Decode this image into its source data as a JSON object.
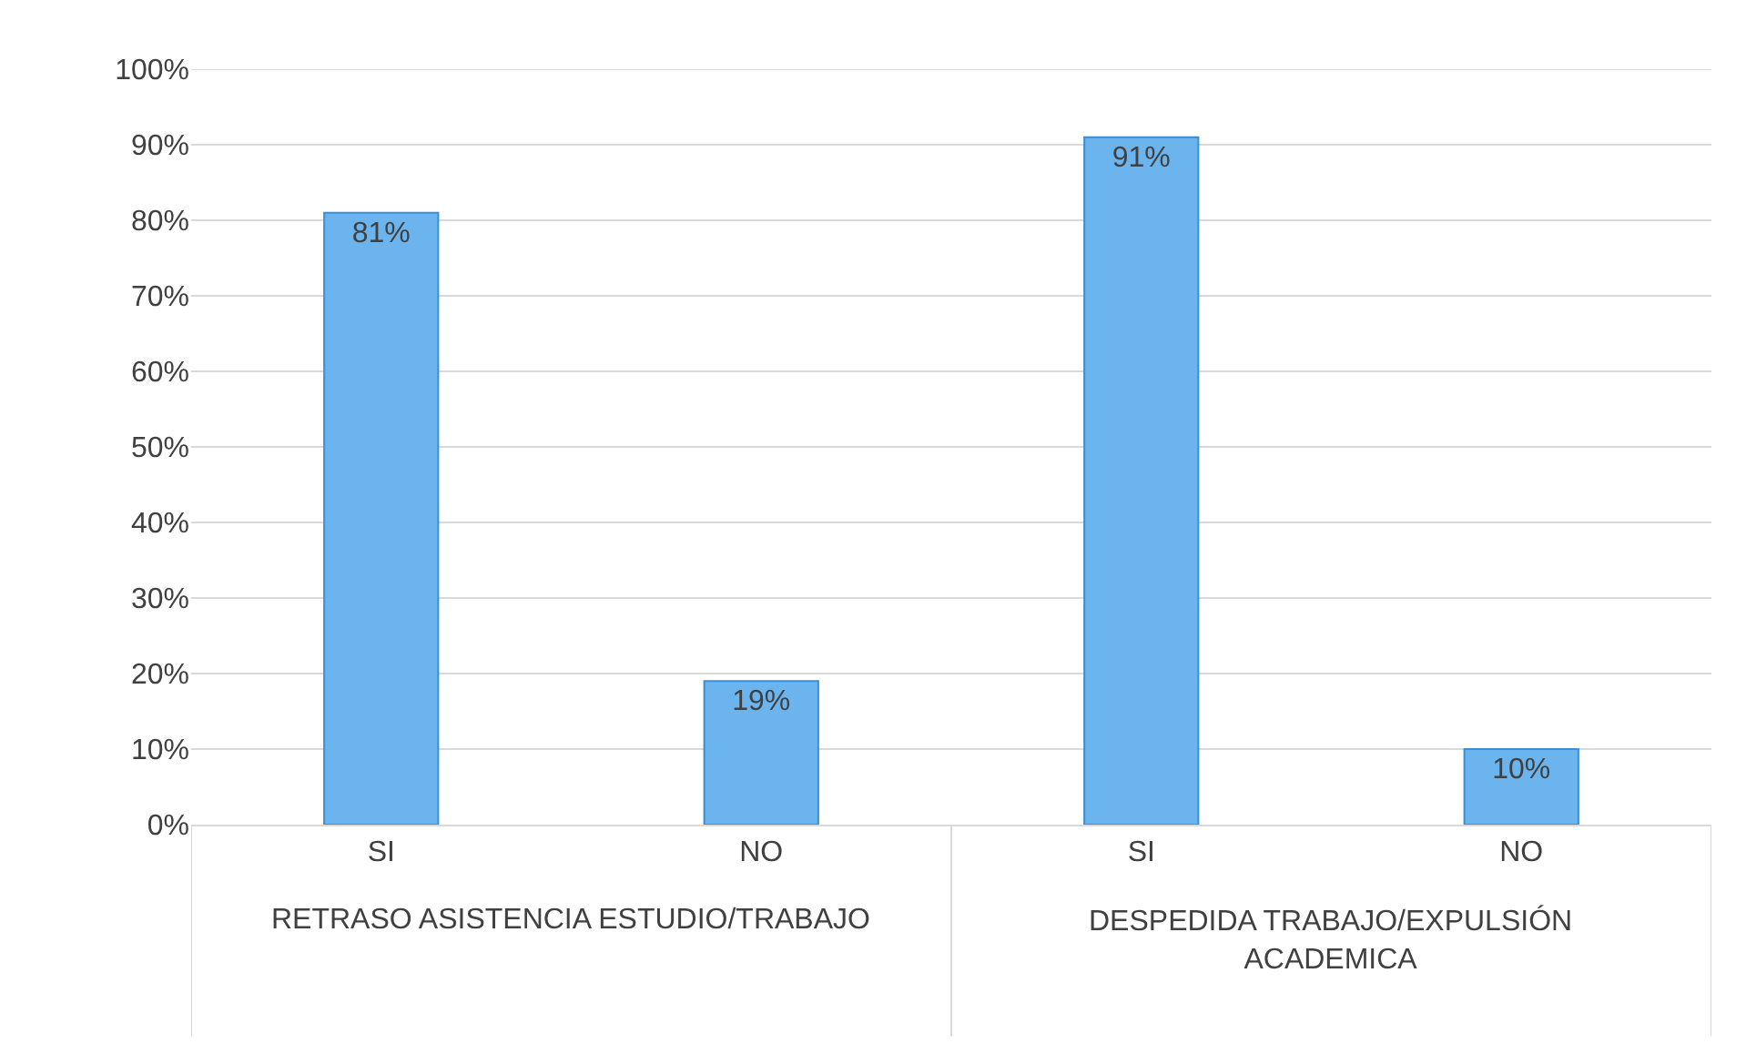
{
  "chart_data": {
    "type": "bar",
    "categories": [
      "SI",
      "NO",
      "SI",
      "NO"
    ],
    "values": [
      81,
      19,
      91,
      10
    ],
    "color": "#6cb4ee",
    "ylim": [
      0,
      100
    ],
    "yticks": [
      {
        "value": 0,
        "label": "0%"
      },
      {
        "value": 10,
        "label": "10%"
      },
      {
        "value": 20,
        "label": "20%"
      },
      {
        "value": 30,
        "label": "30%"
      },
      {
        "value": 40,
        "label": "40%"
      },
      {
        "value": 50,
        "label": "50%"
      },
      {
        "value": 60,
        "label": "60%"
      },
      {
        "value": 70,
        "label": "70%"
      },
      {
        "value": 80,
        "label": "80%"
      },
      {
        "value": 90,
        "label": "90%"
      },
      {
        "value": 100,
        "label": "100%"
      }
    ],
    "value_labels": [
      "81%",
      "19%",
      "91%",
      "10%"
    ],
    "annotations": [
      "RETRASO ASISTENCIA ESTUDIO/TRABAJO",
      "DESPEDIDA TRABAJO/EXPULSIÓN ACADEMICA"
    ],
    "grid": "y",
    "legend": false
  }
}
